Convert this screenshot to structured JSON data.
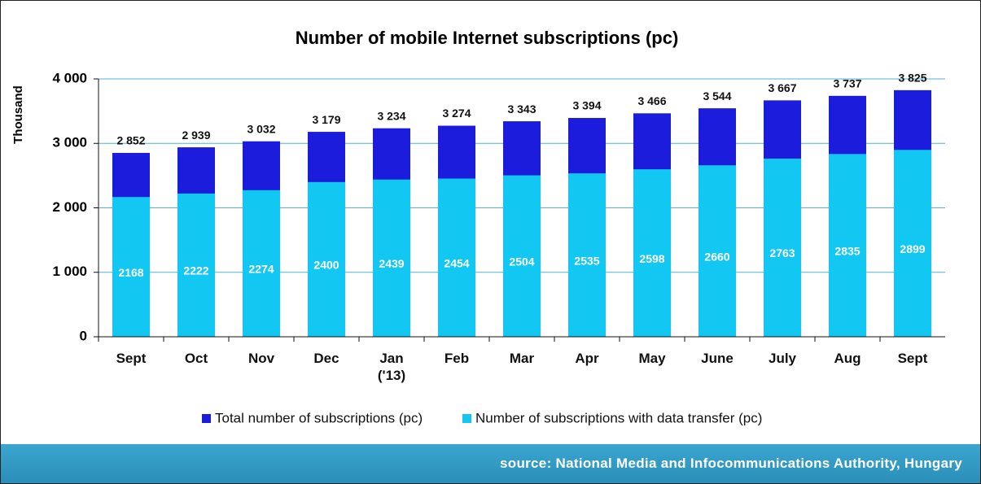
{
  "chart_data": {
    "type": "bar",
    "title": "Number of mobile Internet subscriptions  (pc)",
    "y_label": "Thousand",
    "categories": [
      "Sept",
      "Oct",
      "Nov",
      "Dec",
      "Jan ('13)",
      "Feb",
      "Mar",
      "Apr",
      "May",
      "June",
      "July",
      "Aug",
      "Sept"
    ],
    "series": [
      {
        "name": "Total number of subscriptions (pc)",
        "color": "#1c1cdc",
        "values": [
          2852,
          2939,
          3032,
          3179,
          3234,
          3274,
          3343,
          3394,
          3466,
          3544,
          3667,
          3737,
          3825
        ],
        "value_labels": [
          "2 852",
          "2 939",
          "3 032",
          "3 179",
          "3 234",
          "3 274",
          "3 343",
          "3 394",
          "3 466",
          "3 544",
          "3 667",
          "3 737",
          "3 825"
        ]
      },
      {
        "name": "Number of subscriptions with data transfer (pc)",
        "color": "#12c8f2",
        "values": [
          2168,
          2222,
          2274,
          2400,
          2439,
          2454,
          2504,
          2535,
          2598,
          2660,
          2763,
          2835,
          2899
        ]
      }
    ],
    "ylim": [
      0,
      4000
    ],
    "yticks": [
      0,
      {
        "value": 1000,
        "label": "1 000"
      },
      {
        "value": 2000,
        "label": "2 000"
      },
      {
        "value": 3000,
        "label": "3 000"
      },
      {
        "value": 4000,
        "label": "4 000"
      }
    ],
    "grid": true,
    "legend": "bottom"
  },
  "footer": {
    "source": "source: National Media and Infocommunications Authority, Hungary"
  }
}
